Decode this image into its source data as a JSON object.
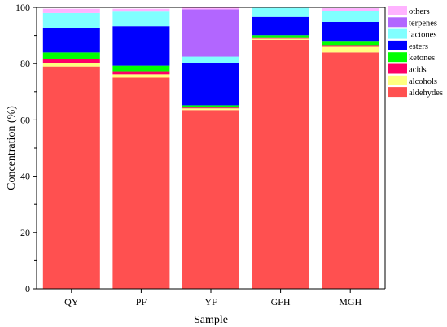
{
  "chart_data": {
    "type": "bar",
    "stacked": true,
    "xlabel": "Sample",
    "ylabel": "Concentration (%)",
    "ylim": [
      0,
      100
    ],
    "yticks": [
      0,
      20,
      40,
      60,
      80,
      100
    ],
    "grid": false,
    "legend_position": "right",
    "categories": [
      "QY",
      "PF",
      "YF",
      "GFH",
      "MGH"
    ],
    "series": [
      {
        "name": "aldehydes",
        "color": "#ff5050",
        "values": [
          79,
          75,
          63.5,
          88.5,
          84
        ]
      },
      {
        "name": "alcohols",
        "color": "#ffff80",
        "values": [
          1.2,
          1.2,
          0.6,
          0.4,
          2
        ]
      },
      {
        "name": "acids",
        "color": "#ff0066",
        "values": [
          1.5,
          1.1,
          0.3,
          0.2,
          0.6
        ]
      },
      {
        "name": "ketones",
        "color": "#00ff00",
        "values": [
          2.3,
          2,
          0.8,
          1,
          1.2
        ]
      },
      {
        "name": "esters",
        "color": "#0000ff",
        "values": [
          8.5,
          14,
          15,
          6.5,
          7
        ]
      },
      {
        "name": "lactones",
        "color": "#80ffff",
        "values": [
          5.5,
          5.2,
          2.3,
          3.2,
          4
        ]
      },
      {
        "name": "terpenes",
        "color": "#b266ff",
        "values": [
          0,
          0,
          16.8,
          0,
          0
        ]
      },
      {
        "name": "others",
        "color": "#ffb3ff",
        "values": [
          1.5,
          1,
          0.6,
          0,
          0.9
        ]
      }
    ]
  }
}
